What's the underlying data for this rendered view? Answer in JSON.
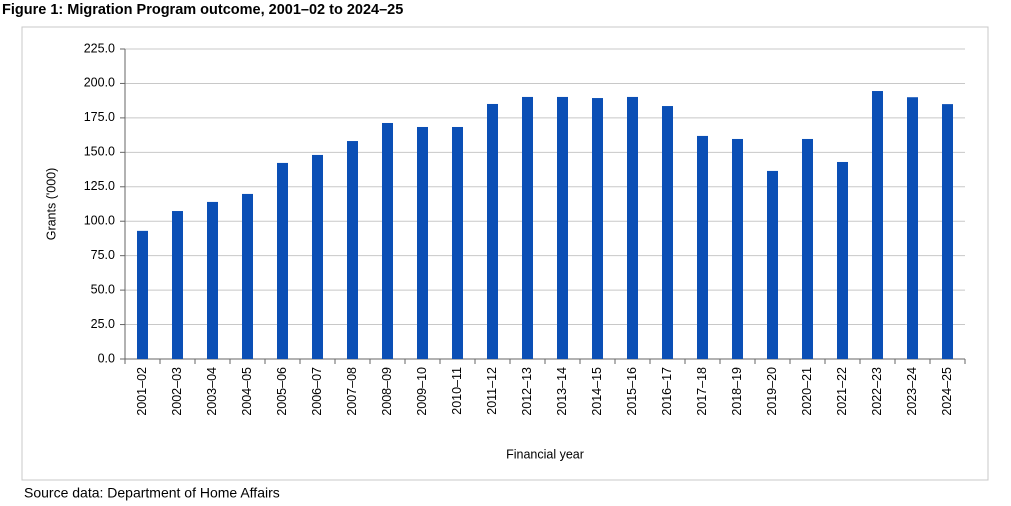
{
  "chart_data": {
    "type": "bar",
    "title": "Figure 1: Migration Program outcome, 2001–02 to 2024–25",
    "x_label": "Financial year",
    "y_label": "Grants ('000)",
    "source": "Source data: Department of Home Affairs",
    "categories": [
      "2001–02",
      "2002–03",
      "2003–04",
      "2004–05",
      "2005–06",
      "2006–07",
      "2007–08",
      "2008–09",
      "2009–10",
      "2010–11",
      "2011–12",
      "2012–13",
      "2013–14",
      "2014–15",
      "2015–16",
      "2016–17",
      "2017–18",
      "2018–19",
      "2019–20",
      "2020–21",
      "2021–22",
      "2022–23",
      "2023–24",
      "2024–25"
    ],
    "values": [
      93.0,
      107.4,
      114.0,
      119.8,
      142.3,
      148.1,
      158.2,
      171.3,
      168.4,
      168.4,
      185.1,
      190.2,
      190.2,
      189.4,
      190.2,
      183.6,
      161.9,
      159.7,
      136.5,
      159.7,
      143.0,
      194.5,
      190.0,
      185.0
    ],
    "color": "#0b4fb5",
    "ylim": [
      0,
      225
    ],
    "yticks": [
      {
        "value": 0,
        "label": "0.0"
      },
      {
        "value": 25,
        "label": "25.0"
      },
      {
        "value": 50,
        "label": "50.0"
      },
      {
        "value": 75,
        "label": "75.0"
      },
      {
        "value": 100,
        "label": "100.0"
      },
      {
        "value": 125,
        "label": "125.0"
      },
      {
        "value": 150,
        "label": "150.0"
      },
      {
        "value": 175,
        "label": "175.0"
      },
      {
        "value": 200,
        "label": "200.0"
      },
      {
        "value": 225,
        "label": "225.0"
      }
    ],
    "grid": true
  }
}
